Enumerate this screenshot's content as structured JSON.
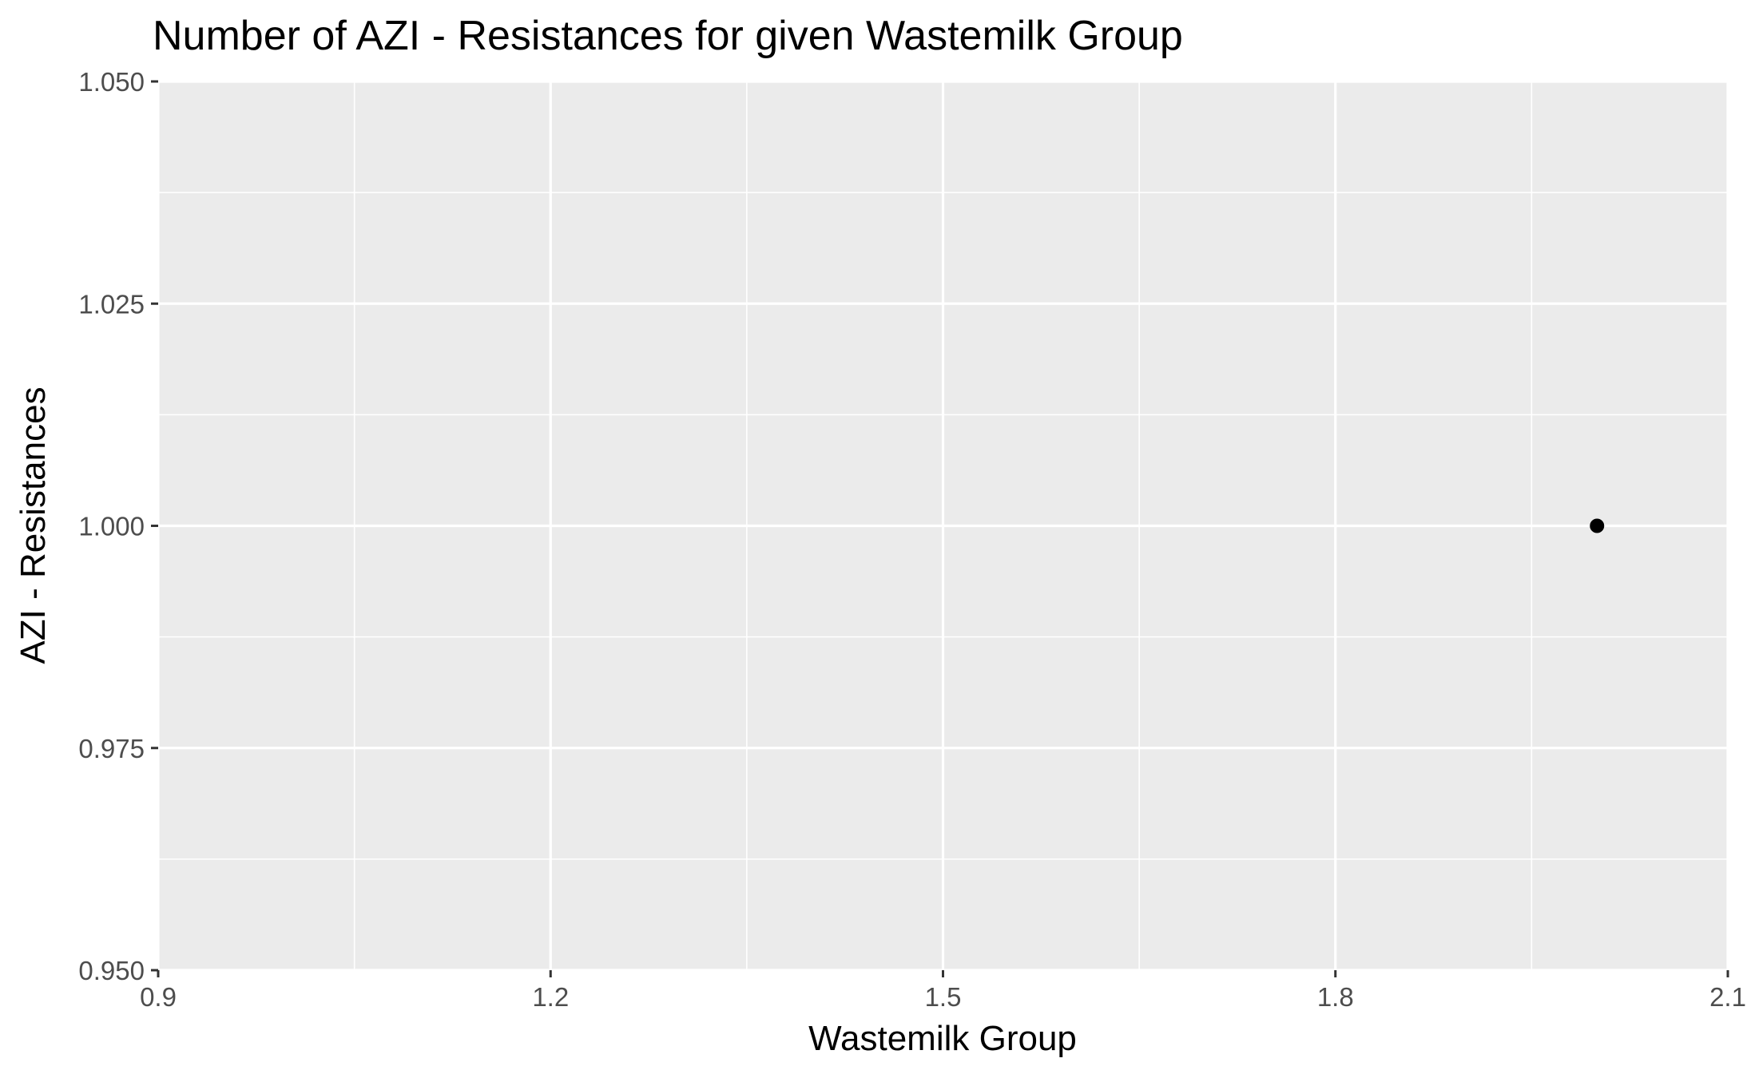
{
  "chart_data": {
    "type": "scatter",
    "title": "Number of AZI - Resistances for given Wastemilk Group",
    "xlabel": "Wastemilk Group",
    "ylabel": "AZI - Resistances",
    "xlim": [
      0.9,
      2.1
    ],
    "ylim": [
      0.95,
      1.05
    ],
    "x_ticks": [
      0.9,
      1.2,
      1.5,
      1.8,
      2.1
    ],
    "x_tick_labels": [
      "0.9",
      "1.2",
      "1.5",
      "1.8",
      "2.1"
    ],
    "y_ticks": [
      0.95,
      0.975,
      1.0,
      1.025,
      1.05
    ],
    "y_tick_labels": [
      "0.950",
      "0.975",
      "1.000",
      "1.025",
      "1.050"
    ],
    "points": [
      {
        "x": 2.0,
        "y": 1.0
      }
    ],
    "grid": true,
    "panel_color": "#ebebeb",
    "grid_color": "#ffffff",
    "point_color": "#000000"
  }
}
